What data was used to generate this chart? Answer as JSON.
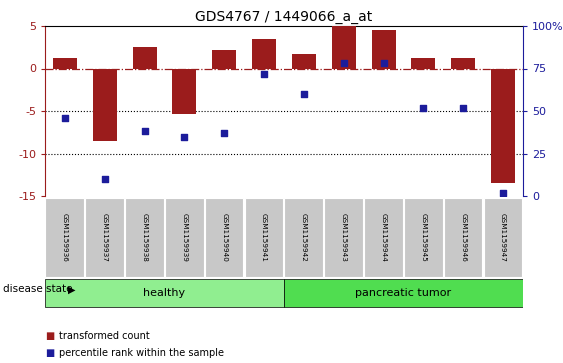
{
  "title": "GDS4767 / 1449066_a_at",
  "samples": [
    "GSM1159936",
    "GSM1159937",
    "GSM1159938",
    "GSM1159939",
    "GSM1159940",
    "GSM1159941",
    "GSM1159942",
    "GSM1159943",
    "GSM1159944",
    "GSM1159945",
    "GSM1159946",
    "GSM1159947"
  ],
  "transformed_count": [
    1.2,
    -8.5,
    2.5,
    -5.3,
    2.2,
    3.5,
    1.7,
    5.0,
    4.5,
    1.2,
    1.2,
    -13.5
  ],
  "percentile_rank": [
    46,
    10,
    38,
    35,
    37,
    72,
    60,
    78,
    78,
    52,
    52,
    2
  ],
  "healthy_count": 6,
  "healthy_label": "healthy",
  "tumor_label": "pancreatic tumor",
  "disease_state_label": "disease state",
  "left_ylim": [
    -15,
    5
  ],
  "right_ylim": [
    0,
    100
  ],
  "left_yticks": [
    5,
    0,
    -5,
    -10,
    -15
  ],
  "right_yticks": [
    100,
    75,
    50,
    25,
    0
  ],
  "right_yticklabels": [
    "100%",
    "75",
    "50",
    "25",
    "0"
  ],
  "bar_color": "#9B1C1C",
  "dot_color": "#1C1C9B",
  "healthy_bg": "#90EE90",
  "tumor_bg": "#50DD50",
  "tick_bg": "#C8C8C8",
  "legend_bar_label": "transformed count",
  "legend_dot_label": "percentile rank within the sample"
}
